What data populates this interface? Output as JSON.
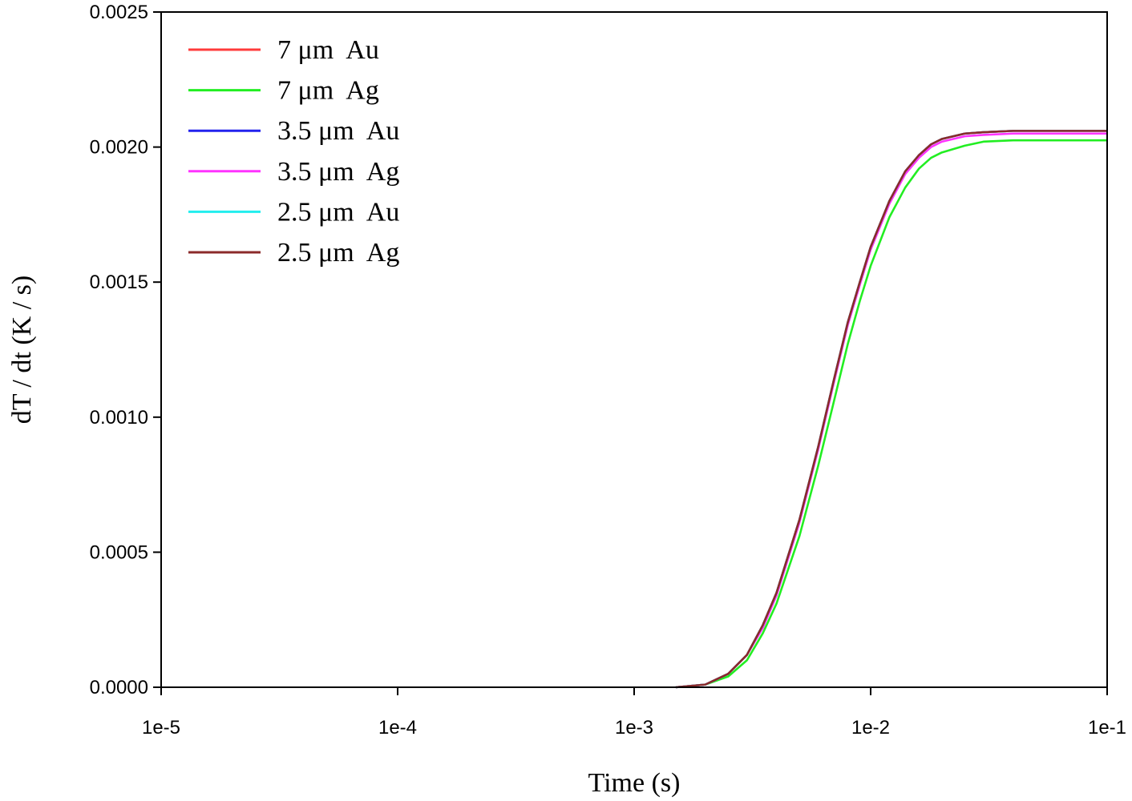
{
  "chart_data": {
    "type": "line",
    "title": "",
    "xlabel": "Time (s)",
    "ylabel": "dT / dt (K / s)",
    "xscale": "log",
    "xlim": [
      1e-05,
      0.1
    ],
    "ylim": [
      0,
      0.0025
    ],
    "grid": false,
    "legend_position": "top-left",
    "x_ticks": [
      {
        "value": 1e-05,
        "label": "1e-5"
      },
      {
        "value": 0.0001,
        "label": "1e-4"
      },
      {
        "value": 0.001,
        "label": "1e-3"
      },
      {
        "value": 0.01,
        "label": "1e-2"
      },
      {
        "value": 0.1,
        "label": "1e-1"
      }
    ],
    "y_ticks": [
      {
        "value": 0,
        "label": "0.0000"
      },
      {
        "value": 0.0005,
        "label": "0.0005"
      },
      {
        "value": 0.001,
        "label": "0.0010"
      },
      {
        "value": 0.0015,
        "label": "0.0015"
      },
      {
        "value": 0.002,
        "label": "0.0020"
      },
      {
        "value": 0.0025,
        "label": "0.0025"
      }
    ],
    "x": [
      0.0015,
      0.002,
      0.0025,
      0.003,
      0.0035,
      0.004,
      0.005,
      0.006,
      0.007,
      0.008,
      0.009,
      0.01,
      0.012,
      0.014,
      0.016,
      0.018,
      0.02,
      0.025,
      0.03,
      0.04,
      0.05,
      0.07,
      0.1
    ],
    "series": [
      {
        "name": "7 μm  Au",
        "color": "#ff3b3b",
        "values": [
          0,
          1e-05,
          5e-05,
          0.00012,
          0.00023,
          0.00035,
          0.00062,
          0.00089,
          0.00114,
          0.00135,
          0.0015,
          0.00163,
          0.0018,
          0.00191,
          0.00197,
          0.00201,
          0.00203,
          0.00205,
          0.002055,
          0.00206,
          0.00206,
          0.00206,
          0.00206
        ]
      },
      {
        "name": "7 μm  Ag",
        "color": "#22ee22",
        "values": [
          0,
          1e-05,
          4e-05,
          0.0001,
          0.0002,
          0.00031,
          0.00056,
          0.00082,
          0.00106,
          0.00127,
          0.00143,
          0.00156,
          0.00174,
          0.00185,
          0.00192,
          0.00196,
          0.00198,
          0.002005,
          0.00202,
          0.002025,
          0.002025,
          0.002025,
          0.002025
        ]
      },
      {
        "name": "3.5 μm  Au",
        "color": "#2222ee",
        "values": [
          0,
          1e-05,
          5e-05,
          0.00012,
          0.00023,
          0.00035,
          0.00062,
          0.00089,
          0.00114,
          0.00135,
          0.0015,
          0.00163,
          0.0018,
          0.00191,
          0.00197,
          0.00201,
          0.00203,
          0.00205,
          0.002055,
          0.00206,
          0.00206,
          0.00206,
          0.00206
        ]
      },
      {
        "name": "3.5 μm  Ag",
        "color": "#ff33ff",
        "values": [
          0,
          1e-05,
          5e-05,
          0.00012,
          0.00022,
          0.00034,
          0.00061,
          0.00088,
          0.00113,
          0.00134,
          0.00149,
          0.00162,
          0.00179,
          0.0019,
          0.00196,
          0.002,
          0.00202,
          0.00204,
          0.002045,
          0.00205,
          0.00205,
          0.00205,
          0.00205
        ]
      },
      {
        "name": "2.5 μm  Au",
        "color": "#22eeee",
        "values": [
          0,
          1e-05,
          5e-05,
          0.00012,
          0.00023,
          0.00035,
          0.00062,
          0.00089,
          0.00114,
          0.00135,
          0.0015,
          0.00163,
          0.0018,
          0.00191,
          0.00197,
          0.00201,
          0.00203,
          0.00205,
          0.002055,
          0.00206,
          0.00206,
          0.00206,
          0.00206
        ]
      },
      {
        "name": "2.5 μm  Ag",
        "color": "#8b2a2a",
        "values": [
          0,
          1e-05,
          5e-05,
          0.00012,
          0.00023,
          0.00035,
          0.00062,
          0.00089,
          0.00114,
          0.00135,
          0.0015,
          0.00163,
          0.0018,
          0.00191,
          0.00197,
          0.00201,
          0.00203,
          0.00205,
          0.002055,
          0.00206,
          0.00206,
          0.00206,
          0.00206
        ]
      }
    ]
  }
}
